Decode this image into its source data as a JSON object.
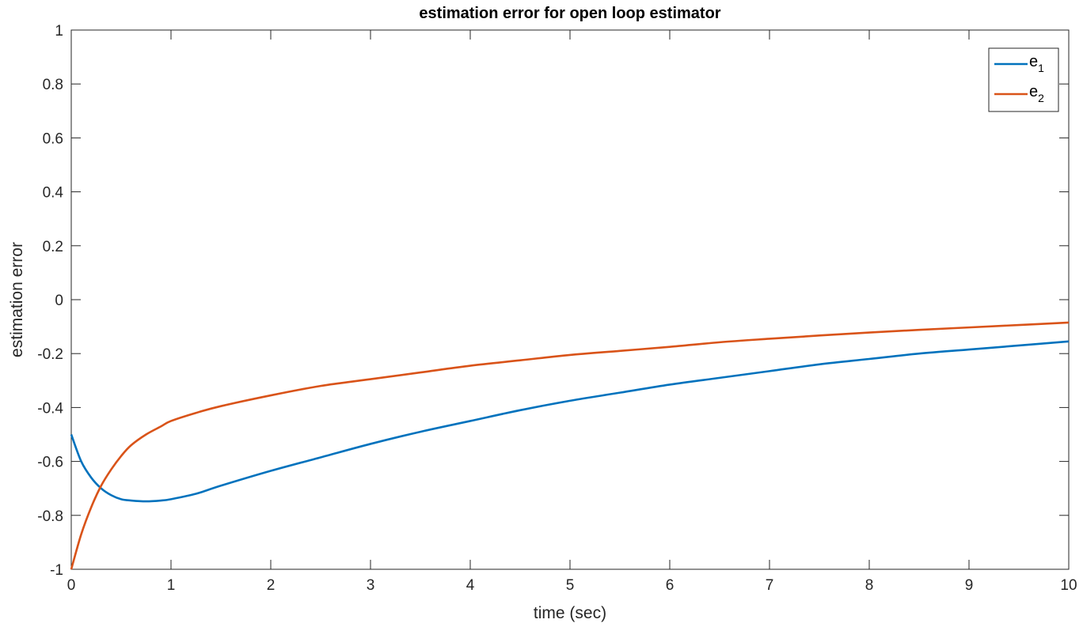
{
  "chart_data": {
    "type": "line",
    "title": "estimation error for open loop estimator",
    "xlabel": "time (sec)",
    "ylabel": "estimation error",
    "xlim": [
      0,
      10
    ],
    "ylim": [
      -1,
      1
    ],
    "xticks": [
      0,
      1,
      2,
      3,
      4,
      5,
      6,
      7,
      8,
      9,
      10
    ],
    "yticks": [
      -1,
      -0.8,
      -0.6,
      -0.4,
      -0.2,
      0,
      0.2,
      0.4,
      0.6,
      0.8,
      1
    ],
    "grid": false,
    "legend_position": "top-right",
    "x": [
      0,
      0.1,
      0.2,
      0.3,
      0.4,
      0.5,
      0.6,
      0.75,
      0.9,
      1,
      1.25,
      1.5,
      2,
      2.5,
      3,
      3.5,
      4,
      4.5,
      5,
      5.5,
      6,
      6.5,
      7,
      7.5,
      8,
      8.5,
      9,
      9.5,
      10
    ],
    "series": [
      {
        "name": "e",
        "name_subscript": "1",
        "color": "#0072BD",
        "values": [
          -0.5,
          -0.6,
          -0.66,
          -0.7,
          -0.725,
          -0.74,
          -0.745,
          -0.748,
          -0.745,
          -0.74,
          -0.72,
          -0.69,
          -0.635,
          -0.585,
          -0.535,
          -0.49,
          -0.45,
          -0.41,
          -0.375,
          -0.345,
          -0.315,
          -0.29,
          -0.265,
          -0.24,
          -0.22,
          -0.2,
          -0.185,
          -0.17,
          -0.155
        ]
      },
      {
        "name": "e",
        "name_subscript": "2",
        "color": "#D95319",
        "values": [
          -1,
          -0.87,
          -0.77,
          -0.69,
          -0.63,
          -0.58,
          -0.54,
          -0.5,
          -0.47,
          -0.45,
          -0.42,
          -0.395,
          -0.355,
          -0.32,
          -0.295,
          -0.27,
          -0.245,
          -0.225,
          -0.205,
          -0.19,
          -0.175,
          -0.158,
          -0.145,
          -0.133,
          -0.122,
          -0.112,
          -0.103,
          -0.094,
          -0.085
        ]
      }
    ]
  }
}
